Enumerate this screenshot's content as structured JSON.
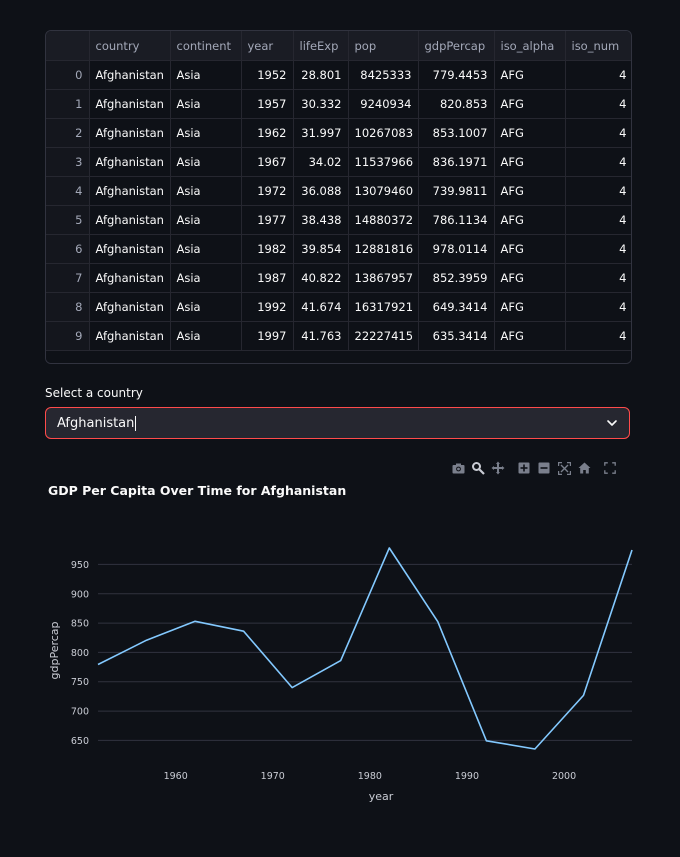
{
  "table": {
    "columns": [
      "",
      "country",
      "continent",
      "year",
      "lifeExp",
      "pop",
      "gdpPercap",
      "iso_alpha",
      "iso_num"
    ],
    "rows": [
      [
        "0",
        "Afghanistan",
        "Asia",
        "1952",
        "28.801",
        "8425333",
        "779.4453",
        "AFG",
        "4"
      ],
      [
        "1",
        "Afghanistan",
        "Asia",
        "1957",
        "30.332",
        "9240934",
        "820.853",
        "AFG",
        "4"
      ],
      [
        "2",
        "Afghanistan",
        "Asia",
        "1962",
        "31.997",
        "10267083",
        "853.1007",
        "AFG",
        "4"
      ],
      [
        "3",
        "Afghanistan",
        "Asia",
        "1967",
        "34.02",
        "11537966",
        "836.1971",
        "AFG",
        "4"
      ],
      [
        "4",
        "Afghanistan",
        "Asia",
        "1972",
        "36.088",
        "13079460",
        "739.9811",
        "AFG",
        "4"
      ],
      [
        "5",
        "Afghanistan",
        "Asia",
        "1977",
        "38.438",
        "14880372",
        "786.1134",
        "AFG",
        "4"
      ],
      [
        "6",
        "Afghanistan",
        "Asia",
        "1982",
        "39.854",
        "12881816",
        "978.0114",
        "AFG",
        "4"
      ],
      [
        "7",
        "Afghanistan",
        "Asia",
        "1987",
        "40.822",
        "13867957",
        "852.3959",
        "AFG",
        "4"
      ],
      [
        "8",
        "Afghanistan",
        "Asia",
        "1992",
        "41.674",
        "16317921",
        "649.3414",
        "AFG",
        "4"
      ],
      [
        "9",
        "Afghanistan",
        "Asia",
        "1997",
        "41.763",
        "22227415",
        "635.3414",
        "AFG",
        "4"
      ]
    ]
  },
  "select": {
    "label": "Select a country",
    "value": "Afghanistan"
  },
  "modebar": {
    "icons": [
      "camera-icon",
      "zoom-icon",
      "pan-icon",
      "zoom-in-icon",
      "zoom-out-icon",
      "autoscale-icon",
      "reset-axes-icon",
      "fullscreen-icon"
    ]
  },
  "colors": {
    "background": "#0e1117",
    "line": "#83c9ff",
    "select_border": "#ff4b4b",
    "grid": "#31333f"
  },
  "chart_data": {
    "type": "line",
    "title": "GDP Per Capita Over Time for Afghanistan",
    "xlabel": "year",
    "ylabel": "gdpPercap",
    "x": [
      1952,
      1957,
      1962,
      1967,
      1972,
      1977,
      1982,
      1987,
      1992,
      1997,
      2002,
      2007
    ],
    "series": [
      {
        "values": [
          779.4453,
          820.853,
          853.1007,
          836.1971,
          739.9811,
          786.1134,
          978.0114,
          852.3959,
          649.3414,
          635.3414,
          726.7341,
          974.5803
        ]
      }
    ],
    "xticks": [
      1960,
      1970,
      1980,
      1990,
      2000
    ],
    "yticks": [
      650,
      700,
      750,
      800,
      850,
      900,
      950
    ],
    "xlim": [
      1952,
      2007
    ],
    "ylim": [
      635.3414,
      978.0114
    ],
    "grid": true
  }
}
